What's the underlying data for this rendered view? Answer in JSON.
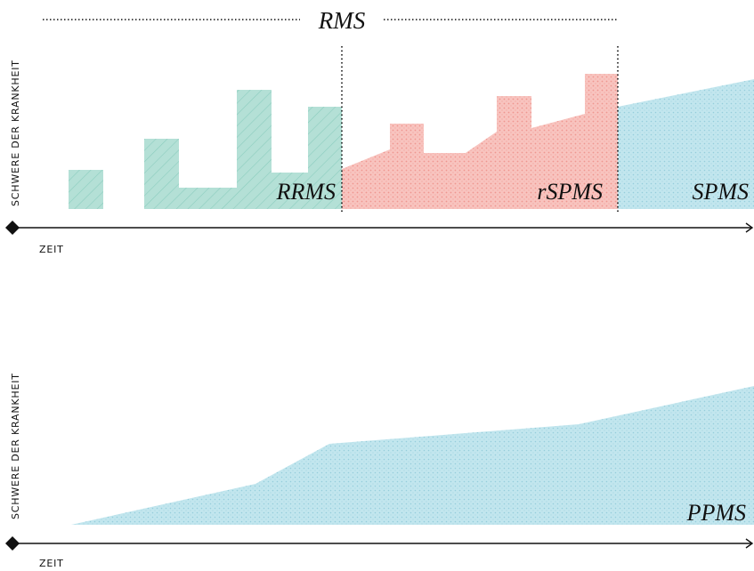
{
  "colors": {
    "rrms_fill": "#b4e0d6",
    "rrms_hatch": "#7fc6b6",
    "rspms_fill": "#f8c2bd",
    "rspms_dots": "#ee8f88",
    "progressive_fill": "#bfe5ee",
    "progressive_dots": "#8fcad8",
    "axis": "#111111"
  },
  "top_panel": {
    "title": "RMS",
    "ylabel": "SCHWERE DER KRANKHEIT",
    "xlabel": "ZEIT",
    "phase_labels": {
      "rrms": "RRMS",
      "rspms": "rSPMS",
      "spms": "SPMS"
    }
  },
  "bottom_panel": {
    "ylabel": "SCHWERE DER KRANKHEIT",
    "xlabel": "ZEIT",
    "phase_label": "PPMS"
  }
}
